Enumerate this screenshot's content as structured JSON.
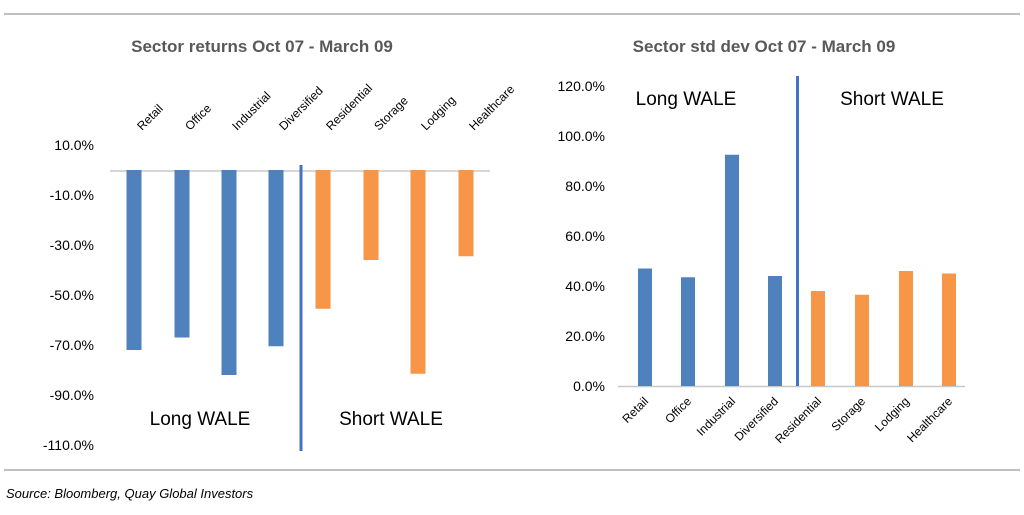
{
  "colors": {
    "long": "#4f81bd",
    "short": "#f79646",
    "divider": "#4472c4",
    "zero_line": "#c8c8c8",
    "frame": "#7f7f7f"
  },
  "source": "Source: Bloomberg, Quay Global Investors",
  "chart_data": [
    {
      "type": "bar",
      "title": "Sector returns Oct 07 - March 09",
      "categories": [
        "Retail",
        "Office",
        "Industrial",
        "Diversified",
        "Residential",
        "Storage",
        "Lodging",
        "Healthcare"
      ],
      "values": [
        -72,
        -67,
        -82,
        -70.5,
        -55.5,
        -36,
        -81.5,
        -34.5
      ],
      "groups": [
        "long",
        "long",
        "long",
        "long",
        "short",
        "short",
        "short",
        "short"
      ],
      "ylim": [
        -110,
        10
      ],
      "yticks": [
        "10.0%",
        "-10.0%",
        "-30.0%",
        "-50.0%",
        "-70.0%",
        "-90.0%",
        "-110.0%"
      ],
      "ytick_values": [
        10,
        -10,
        -30,
        -50,
        -70,
        -90,
        -110
      ],
      "annotations": [
        "Long WALE",
        "Short WALE"
      ],
      "grid": false,
      "legend": "none"
    },
    {
      "type": "bar",
      "title": "Sector std dev Oct 07 - March 09",
      "categories": [
        "Retail",
        "Office",
        "Industrial",
        "Diversified",
        "Residential",
        "Storage",
        "Lodging",
        "Healthcare"
      ],
      "values": [
        47,
        43.5,
        92.5,
        44,
        38,
        36.5,
        46,
        45
      ],
      "groups": [
        "long",
        "long",
        "long",
        "long",
        "short",
        "short",
        "short",
        "short"
      ],
      "ylim": [
        0,
        120
      ],
      "yticks": [
        "0.0%",
        "20.0%",
        "40.0%",
        "60.0%",
        "80.0%",
        "100.0%",
        "120.0%"
      ],
      "ytick_values": [
        0,
        20,
        40,
        60,
        80,
        100,
        120
      ],
      "annotations": [
        "Long WALE",
        "Short WALE"
      ],
      "grid": false,
      "legend": "none"
    }
  ]
}
